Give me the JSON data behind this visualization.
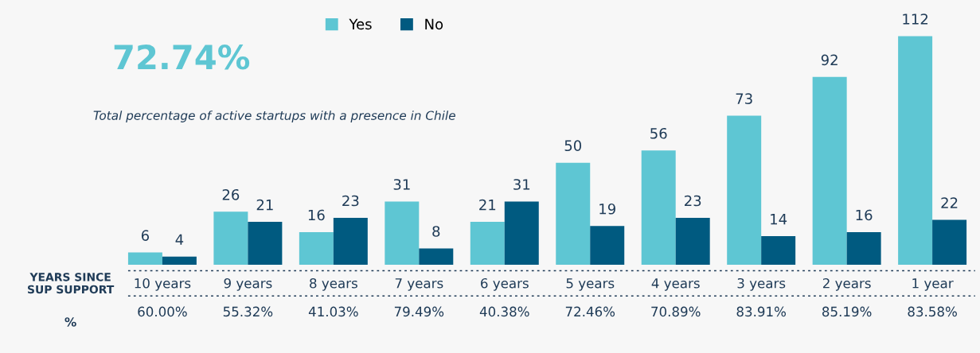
{
  "chart_data": {
    "type": "bar",
    "categories": [
      "10 years",
      "9 years",
      "8 years",
      "7 years",
      "6 years",
      "5 years",
      "4 years",
      "3 years",
      "2 years",
      "1 year"
    ],
    "series": [
      {
        "name": "Yes",
        "color": "#5ec6d3",
        "values": [
          6,
          26,
          16,
          31,
          21,
          50,
          56,
          73,
          92,
          112
        ]
      },
      {
        "name": "No",
        "color": "#005a80",
        "values": [
          4,
          21,
          23,
          8,
          31,
          19,
          23,
          14,
          16,
          22
        ]
      }
    ],
    "data_labels": true,
    "legend": "top",
    "grid": false,
    "xlabel": "YEARS SINCE SUP SUPPORT",
    "annotations": [
      "72.74%",
      "Total percentage of active startups with a presence in Chile",
      "%",
      "60.00%",
      "55.32%",
      "41.03%",
      "79.49%",
      "40.38%",
      "72.46%",
      "70.89%",
      "83.91%",
      "85.19%",
      "83.58%"
    ]
  }
}
